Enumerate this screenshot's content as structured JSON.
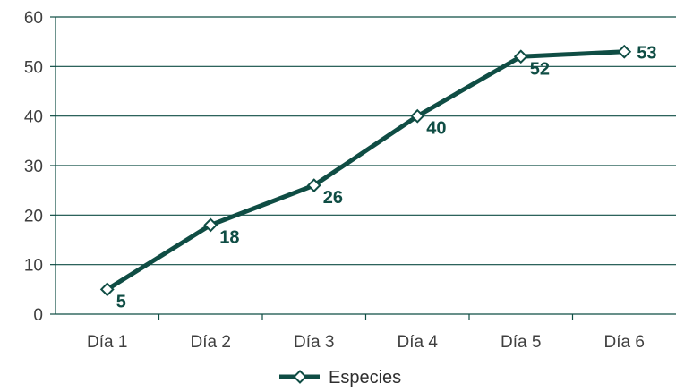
{
  "chart_data": {
    "type": "line",
    "categories": [
      "Día 1",
      "Día 2",
      "Día 3",
      "Día 4",
      "Día 5",
      "Día 6"
    ],
    "series": [
      {
        "name": "Especies",
        "values": [
          5,
          18,
          26,
          40,
          52,
          53
        ]
      }
    ],
    "data_labels": [
      "5",
      "18",
      "26",
      "40",
      "52",
      "53"
    ],
    "y_ticks": [
      "0",
      "10",
      "20",
      "30",
      "40",
      "50",
      "60"
    ],
    "ylim": [
      0,
      60
    ],
    "y_step": 10,
    "title": "",
    "xlabel": "",
    "ylabel": "",
    "grid": "horizontal",
    "legend_position": "bottom",
    "marker": "diamond",
    "colors": {
      "series": "#0f4d44",
      "grid": "#0f4d44",
      "axis": "#0f4d44",
      "marker_fill": "#ffffff",
      "label": "#0f4d44",
      "tick_text": "#3f3f3f"
    }
  }
}
